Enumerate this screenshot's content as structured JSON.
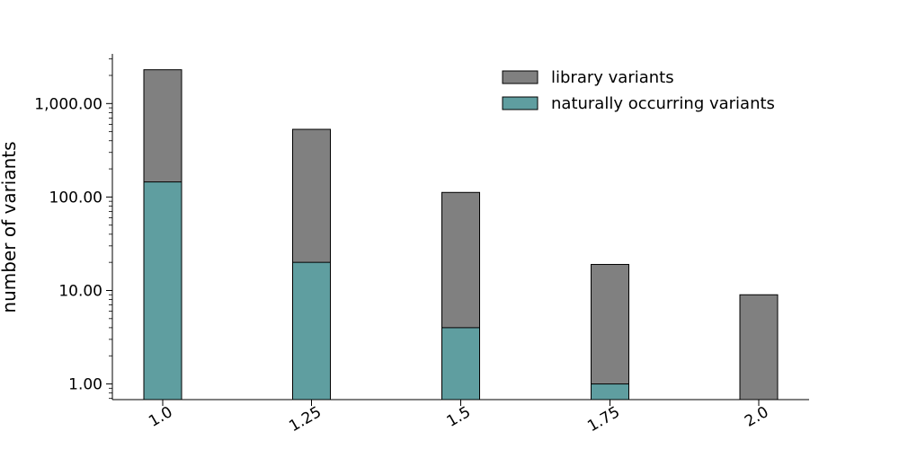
{
  "chart_data": {
    "type": "bar",
    "stacked": false,
    "overlay": true,
    "categories": [
      "1.0",
      "1.25",
      "1.5",
      "1.75",
      "2.0"
    ],
    "series": [
      {
        "name": "library variants",
        "values": [
          2300,
          530,
          112,
          19,
          9
        ],
        "color": "#808080"
      },
      {
        "name": "naturally occurring variants",
        "values": [
          145,
          20,
          4,
          1,
          0
        ],
        "color": "#5f9ea0"
      }
    ],
    "xlabel": "",
    "ylabel": "number of variants",
    "yscale": "log",
    "ylim": [
      0.68,
      3400
    ],
    "yticks": [
      1,
      10,
      100,
      1000
    ],
    "ytick_labels": [
      "1.00",
      "10.00",
      "100.00",
      "1,000.00"
    ],
    "legend": "top-right",
    "grid": false
  }
}
